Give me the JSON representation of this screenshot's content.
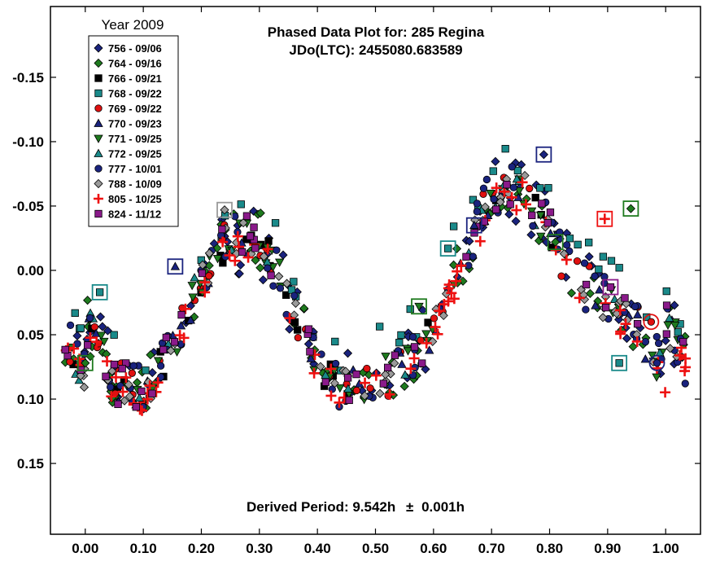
{
  "chart_data": {
    "type": "scatter",
    "title": "Phased Data Plot for: 285 Regina",
    "subtitle": "JDo(LTC): 2455080.683589",
    "annotation_prefix": "Derived Period: 9.542h",
    "annotation_pm": "±",
    "annotation_suffix": "0.001h",
    "legend_title": "Year 2009",
    "legend_position": "top-left",
    "grid": false,
    "y_inverted": true,
    "xlim": [
      -0.06,
      1.06
    ],
    "ylim": [
      -0.205,
      0.205
    ],
    "x_ticks": [
      0,
      0.1,
      0.2,
      0.3,
      0.4,
      0.5,
      0.6,
      0.7,
      0.8,
      0.9,
      1.0
    ],
    "x_tick_labels": [
      "0.00",
      "0.10",
      "0.20",
      "0.30",
      "0.40",
      "0.50",
      "0.60",
      "0.70",
      "0.80",
      "0.90",
      "1.00"
    ],
    "y_ticks": [
      -0.15,
      -0.1,
      -0.05,
      0.0,
      0.05,
      0.1,
      0.15
    ],
    "y_tick_labels": [
      "-0.15",
      "-0.10",
      "-0.05",
      "0.00",
      "0.05",
      "0.10",
      "0.15"
    ],
    "curve": {
      "phase": [
        0.0,
        0.05,
        0.1,
        0.15,
        0.2,
        0.25,
        0.3,
        0.35,
        0.4,
        0.45,
        0.5,
        0.55,
        0.6,
        0.65,
        0.7,
        0.75,
        0.8,
        0.85,
        0.9,
        0.95,
        1.0
      ],
      "mag": [
        0.04,
        0.085,
        0.095,
        0.06,
        0.005,
        -0.025,
        -0.025,
        0.02,
        0.075,
        0.09,
        0.085,
        0.075,
        0.045,
        -0.01,
        -0.06,
        -0.065,
        -0.03,
        0.01,
        0.025,
        0.045,
        0.08
      ]
    },
    "series": [
      {
        "name": "756 - 09/06",
        "marker": "diamond",
        "color": "#1a237e",
        "spread": 0.028,
        "seed": 11,
        "n": 95
      },
      {
        "name": "764 - 09/16",
        "marker": "diamond",
        "color": "#1e7a1e",
        "spread": 0.022,
        "seed": 23,
        "n": 90
      },
      {
        "name": "766 - 09/21",
        "marker": "square",
        "color": "#000000",
        "spread": 0.012,
        "seed": 37,
        "n": 28
      },
      {
        "name": "768 - 09/22",
        "marker": "square",
        "color": "#1a8a8a",
        "spread": 0.016,
        "seed": 41,
        "n": 40,
        "offset": -0.025
      },
      {
        "name": "769 - 09/22",
        "marker": "circle",
        "color": "#e01010",
        "spread": 0.02,
        "seed": 53,
        "n": 45
      },
      {
        "name": "770 - 09/23",
        "marker": "triangle-up",
        "color": "#1a237e",
        "spread": 0.015,
        "seed": 61,
        "n": 30
      },
      {
        "name": "771 - 09/25",
        "marker": "triangle-down",
        "color": "#1e7a1e",
        "spread": 0.015,
        "seed": 71,
        "n": 60
      },
      {
        "name": "772 - 09/25",
        "marker": "triangle-up",
        "color": "#1a8a8a",
        "spread": 0.015,
        "seed": 83,
        "n": 25
      },
      {
        "name": "777 - 10/01",
        "marker": "circle",
        "color": "#1a237e",
        "spread": 0.02,
        "seed": 97,
        "n": 90
      },
      {
        "name": "788 - 10/09",
        "marker": "diamond",
        "color": "#9a9a9a",
        "spread": 0.014,
        "seed": 103,
        "n": 70
      },
      {
        "name": "805 - 10/25",
        "marker": "plus",
        "color": "#ee1111",
        "spread": 0.012,
        "seed": 113,
        "n": 85,
        "offset": 0.006
      },
      {
        "name": "824 - 11/12",
        "marker": "square",
        "color": "#8a1a8a",
        "spread": 0.018,
        "seed": 127,
        "n": 55
      }
    ],
    "highlighted_points": [
      {
        "series": "756 - 09/06",
        "x": 0.79,
        "y": -0.09
      },
      {
        "series": "764 - 09/16",
        "x": 0.0,
        "y": 0.072
      },
      {
        "series": "764 - 09/16",
        "x": 0.94,
        "y": -0.048
      },
      {
        "series": "764 - 09/16",
        "x": 0.81,
        "y": -0.022
      },
      {
        "series": "768 - 09/22",
        "x": 0.025,
        "y": 0.017
      },
      {
        "series": "768 - 09/22",
        "x": 0.92,
        "y": 0.072
      },
      {
        "series": "768 - 09/22",
        "x": 0.625,
        "y": -0.017
      },
      {
        "series": "770 - 09/23",
        "x": 0.155,
        "y": -0.003
      },
      {
        "series": "770 - 09/23",
        "x": 0.67,
        "y": -0.035
      },
      {
        "series": "771 - 09/25",
        "x": 0.575,
        "y": 0.028
      },
      {
        "series": "777 - 10/01",
        "x": 0.985,
        "y": 0.072
      },
      {
        "series": "769 - 09/22",
        "x": 0.975,
        "y": 0.04
      },
      {
        "series": "805 - 10/25",
        "x": 0.895,
        "y": -0.04
      },
      {
        "series": "824 - 11/12",
        "x": 0.905,
        "y": 0.013
      },
      {
        "series": "788 - 10/09",
        "x": 0.24,
        "y": -0.047
      }
    ]
  }
}
